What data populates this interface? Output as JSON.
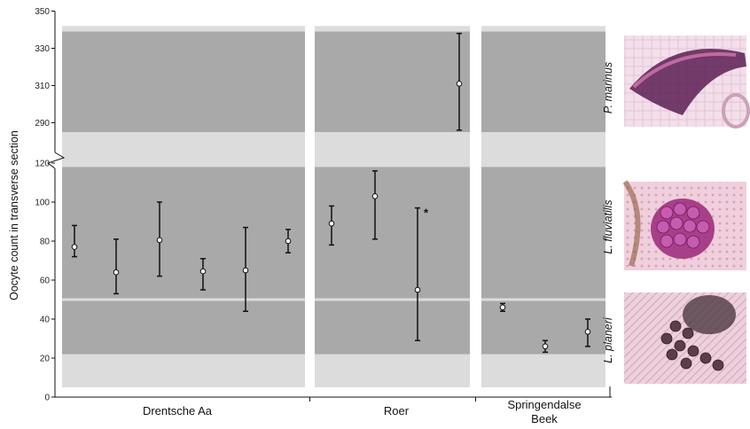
{
  "chart_data": {
    "type": "scatter",
    "ylabel": "Oocyte count in transverse section",
    "y_axis_break": {
      "lower_range": [
        0,
        120
      ],
      "upper_range": [
        280,
        350
      ]
    },
    "yticks_lower": [
      "0",
      "20",
      "40",
      "60",
      "80",
      "100",
      "120"
    ],
    "yticks_upper": [
      "290",
      "310",
      "330",
      "350"
    ],
    "groups": [
      {
        "label": "Drentsche Aa",
        "points": [
          {
            "mean": 77,
            "low": 72,
            "high": 88
          },
          {
            "mean": 64,
            "low": 53,
            "high": 81
          },
          {
            "mean": 80.5,
            "low": 62,
            "high": 100
          },
          {
            "mean": 64.5,
            "low": 55,
            "high": 71
          },
          {
            "mean": 65,
            "low": 44,
            "high": 87
          },
          {
            "mean": 80,
            "low": 74,
            "high": 86
          }
        ]
      },
      {
        "label": "Roer",
        "points": [
          {
            "mean": 89,
            "low": 78,
            "high": 98
          },
          {
            "mean": 103,
            "low": 81,
            "high": 116
          },
          {
            "mean": 55,
            "low": 29,
            "high": 97,
            "annotation": "*"
          },
          {
            "mean": 311,
            "low": 286,
            "high": 338
          }
        ]
      },
      {
        "label": "Springendalse Beek",
        "points": [
          {
            "mean": 46,
            "low": 44,
            "high": 48
          },
          {
            "mean": 26,
            "low": 23,
            "high": 29
          },
          {
            "mean": 33.5,
            "low": 26,
            "high": 40
          }
        ]
      }
    ],
    "species_bands": [
      {
        "label": "P. marinus",
        "range_upper": [
          285,
          339
        ]
      },
      {
        "label": "L. fluviatilis",
        "range_lower": [
          50,
          118
        ]
      },
      {
        "label": "L. planeri",
        "range_lower": [
          22,
          50
        ]
      }
    ],
    "colors": {
      "panel_light": "#dcdcdc",
      "band_dark": "#a9a9a9",
      "marker_fill": "#ffffff",
      "line": "#111111"
    },
    "grid": false,
    "legend": "none"
  },
  "images": [
    {
      "name": "p-marinus-histology",
      "colors": [
        "#f1dde8",
        "#5b1f52",
        "#c06aa0"
      ]
    },
    {
      "name": "l-fluviatilis-histology",
      "colors": [
        "#f0c6d4",
        "#8e2a7a",
        "#d07ab4"
      ]
    },
    {
      "name": "l-planeri-histology",
      "colors": [
        "#e9c1d0",
        "#4d3842",
        "#c68ea8"
      ]
    }
  ]
}
